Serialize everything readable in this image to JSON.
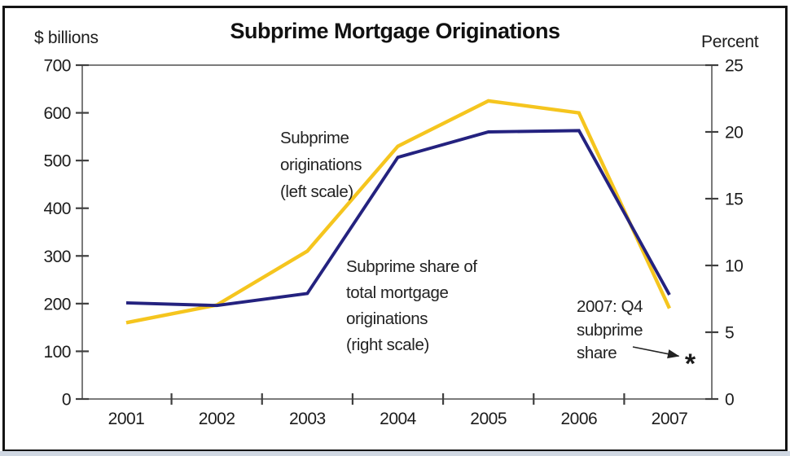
{
  "header": {
    "title": "Subprime Mortgage Originations"
  },
  "chart_data": {
    "type": "line",
    "title": "Subprime Mortgage Originations",
    "x_categories": [
      "2001",
      "2002",
      "2003",
      "2004",
      "2005",
      "2006",
      "2007"
    ],
    "left_axis": {
      "unit": "$ billions",
      "min": 0,
      "max": 700,
      "ticks": [
        700,
        600,
        500,
        400,
        300,
        200,
        100,
        0
      ]
    },
    "right_axis": {
      "unit": "Percent",
      "min": 0,
      "max": 25,
      "ticks": [
        25,
        20,
        15,
        10,
        5,
        0
      ]
    },
    "series": [
      {
        "name": "Subprime originations",
        "scale": "left",
        "color": "#f5c51e",
        "annotation": "Subprime\noriginations\n(left scale)",
        "values": [
          160,
          197,
          310,
          530,
          625,
          600,
          190
        ]
      },
      {
        "name": "Subprime share of total mortgage originations",
        "scale": "right",
        "color": "#24227f",
        "annotation": "Subprime share of\ntotal mortgage\noriginations\n(right scale)",
        "values": [
          7.2,
          7.0,
          7.9,
          18.1,
          20.0,
          20.1,
          7.8
        ]
      }
    ],
    "special_point": {
      "annotation": "2007: Q4\nsubprime\nshare",
      "period": "2007 Q4",
      "right_scale_value": 3.0,
      "marker_symbol": "*",
      "marker_color": "#32329b"
    },
    "grid": false,
    "legend_position": "inline annotations"
  }
}
